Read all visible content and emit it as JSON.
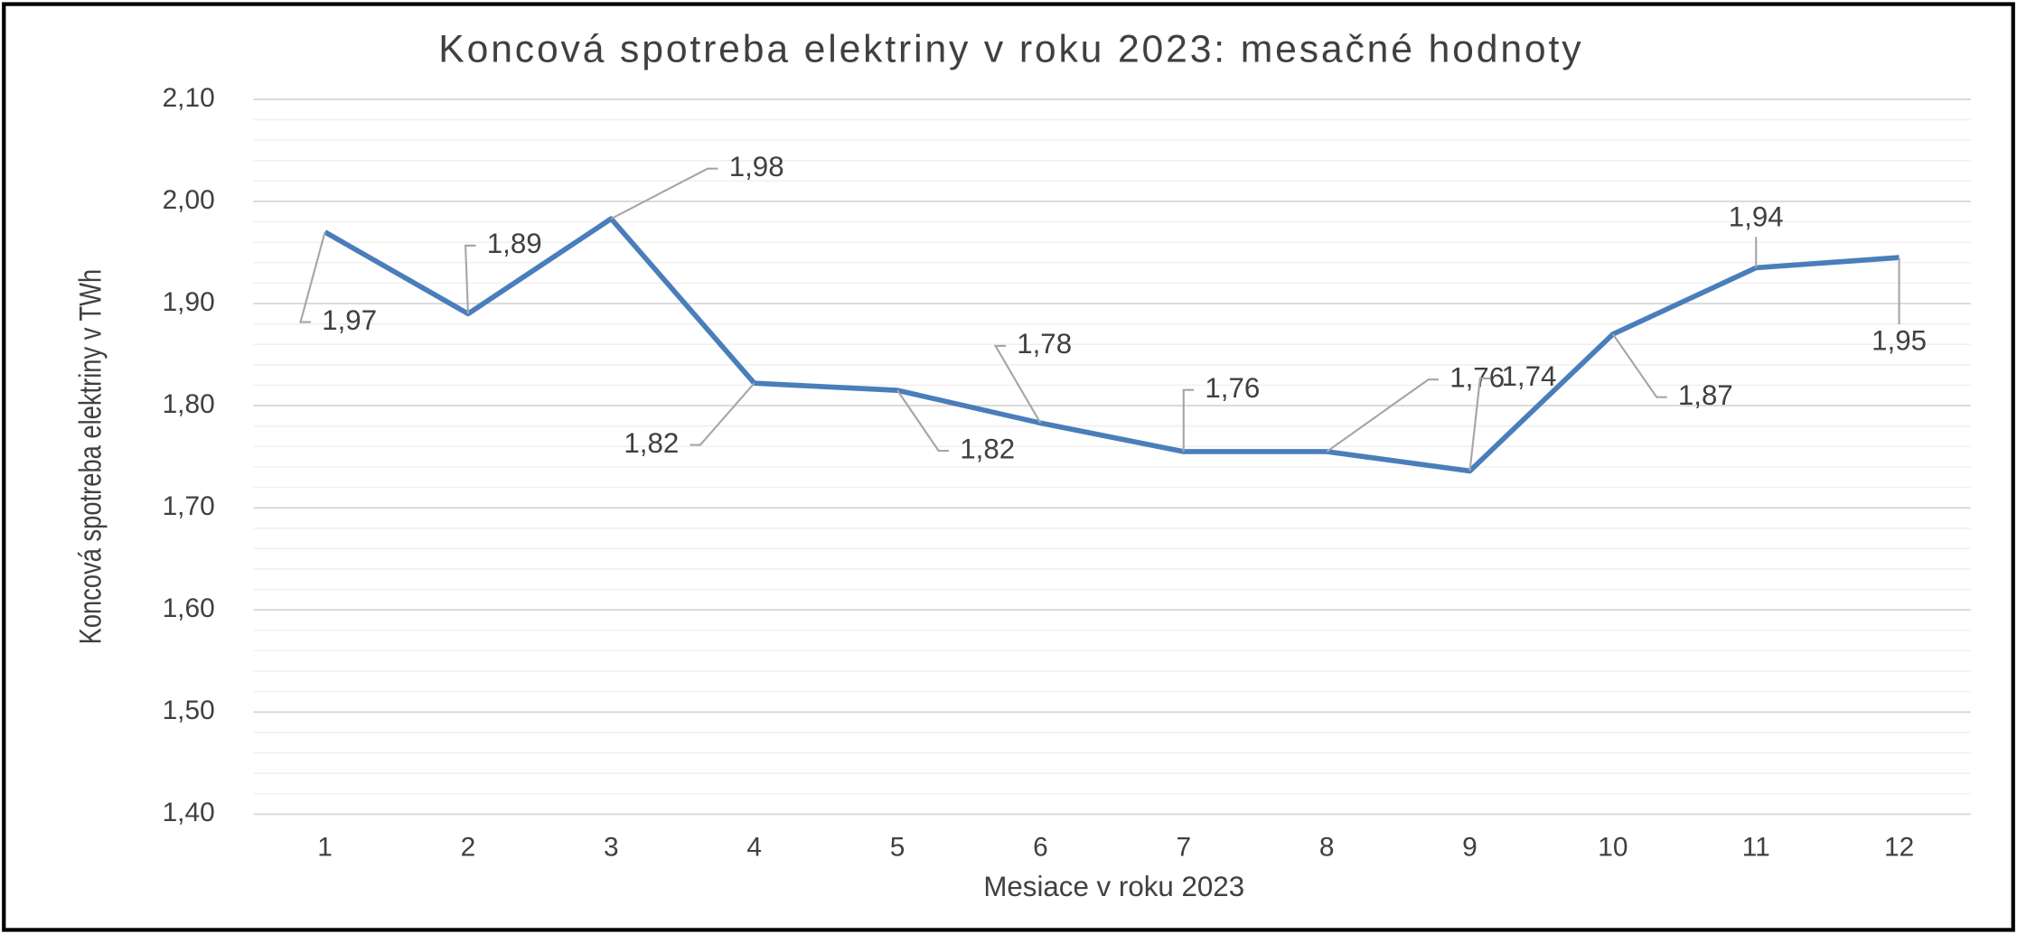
{
  "chart_data": {
    "type": "line",
    "title": "Koncová spotreba elektriny v roku 2023: mesačné hodnoty",
    "x_label": "Mesiace v roku 2023",
    "y_label": "Koncová spotreba elektriny v TWh",
    "categories": [
      "1",
      "2",
      "3",
      "4",
      "5",
      "6",
      "7",
      "8",
      "9",
      "10",
      "11",
      "12"
    ],
    "series": [
      {
        "name": "Koncová spotreba elektriny",
        "color": "#4a7ebb",
        "values": [
          1.97,
          1.89,
          1.983,
          1.822,
          1.815,
          1.783,
          1.755,
          1.755,
          1.736,
          1.87,
          1.935,
          1.945
        ],
        "value_labels": [
          "1,97",
          "1,89",
          "1,98",
          "1,82",
          "1,82",
          "1,78",
          "1,76",
          "1,76",
          "1,74",
          "1,87",
          "1,94",
          "1,95"
        ]
      }
    ],
    "ylim": [
      1.4,
      2.1
    ],
    "yticks": [
      {
        "value": 1.4,
        "label": "1,40"
      },
      {
        "value": 1.5,
        "label": "1,50"
      },
      {
        "value": 1.6,
        "label": "1,60"
      },
      {
        "value": 1.7,
        "label": "1,70"
      },
      {
        "value": 1.8,
        "label": "1,80"
      },
      {
        "value": 1.9,
        "label": "1,90"
      },
      {
        "value": 2.0,
        "label": "2,00"
      },
      {
        "value": 2.1,
        "label": "2,10"
      }
    ],
    "grid": true
  }
}
